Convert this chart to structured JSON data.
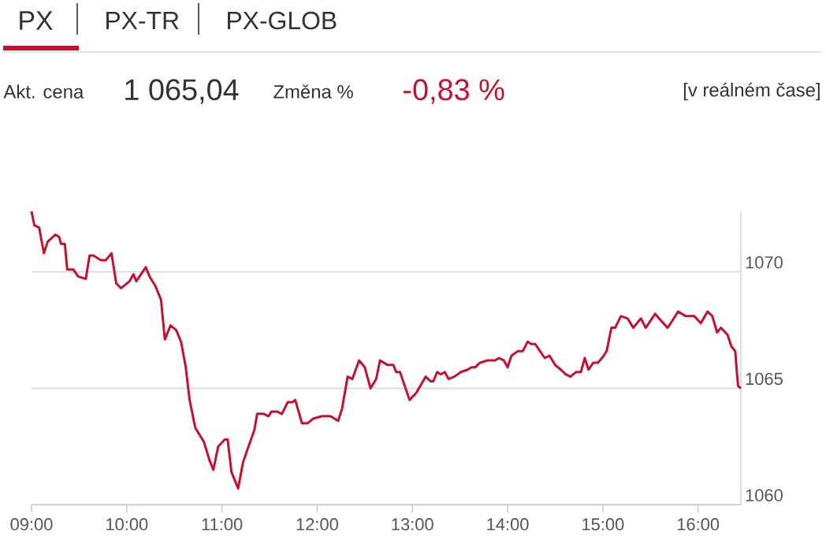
{
  "chart_data": {
    "type": "line",
    "title": "PX",
    "annotations": [
      "PX-TR",
      "PX-GLOB",
      "Akt. cena",
      "1 065,04",
      "Změna %",
      "-0,83 %",
      "[v reálném čase]"
    ],
    "x": [
      9.0,
      9.03,
      9.08,
      9.13,
      9.17,
      9.25,
      9.29,
      9.31,
      9.35,
      9.375,
      9.44,
      9.49,
      9.57,
      9.61,
      9.65,
      9.73,
      9.78,
      9.84,
      9.89,
      9.94,
      10.03,
      10.07,
      10.1,
      10.15,
      10.2,
      10.24,
      10.3,
      10.36,
      10.4,
      10.46,
      10.52,
      10.57,
      10.62,
      10.66,
      10.72,
      10.81,
      10.87,
      10.91,
      10.96,
      11.03,
      11.06,
      11.1,
      11.17,
      11.22,
      11.27,
      11.34,
      11.37,
      11.44,
      11.49,
      11.52,
      11.58,
      11.63,
      11.69,
      11.74,
      11.77,
      11.84,
      11.9,
      11.96,
      12.05,
      12.14,
      12.22,
      12.26,
      12.32,
      12.37,
      12.44,
      12.5,
      12.56,
      12.62,
      12.66,
      12.74,
      12.8,
      12.83,
      12.87,
      12.92,
      12.97,
      13.04,
      13.14,
      13.19,
      13.22,
      13.26,
      13.3,
      13.34,
      13.38,
      13.44,
      13.51,
      13.58,
      13.62,
      13.66,
      13.71,
      13.79,
      13.83,
      13.87,
      13.91,
      13.96,
      14.0,
      14.04,
      14.11,
      14.16,
      14.21,
      14.25,
      14.29,
      14.34,
      14.39,
      14.44,
      14.5,
      14.56,
      14.61,
      14.66,
      14.72,
      14.77,
      14.81,
      14.85,
      14.9,
      14.95,
      15.01,
      15.04,
      15.09,
      15.13,
      15.19,
      15.26,
      15.32,
      15.4,
      15.45,
      15.55,
      15.59,
      15.68,
      15.73,
      15.79,
      15.87,
      15.96,
      16.03,
      16.1,
      16.15,
      16.2,
      16.24,
      16.31,
      16.35,
      16.39,
      16.42,
      16.45
    ],
    "series": [
      {
        "color": "#c8102e",
        "values": [
          1072.6,
          1072.0,
          1071.9,
          1070.8,
          1071.3,
          1071.6,
          1071.5,
          1071.2,
          1071.2,
          1070.1,
          1070.1,
          1069.8,
          1069.7,
          1070.7,
          1070.7,
          1070.5,
          1070.5,
          1070.8,
          1069.5,
          1069.3,
          1069.6,
          1069.9,
          1069.6,
          1069.9,
          1070.2,
          1069.8,
          1069.4,
          1068.8,
          1067.1,
          1067.7,
          1067.5,
          1067.0,
          1065.9,
          1064.5,
          1063.3,
          1062.7,
          1061.9,
          1061.5,
          1062.5,
          1062.8,
          1062.8,
          1061.4,
          1060.7,
          1061.8,
          1062.4,
          1063.2,
          1063.9,
          1063.9,
          1063.8,
          1064.0,
          1064.0,
          1063.9,
          1064.4,
          1064.4,
          1064.5,
          1063.5,
          1063.5,
          1063.7,
          1063.8,
          1063.8,
          1063.6,
          1064.1,
          1065.5,
          1065.4,
          1066.2,
          1065.9,
          1065.0,
          1065.4,
          1066.2,
          1066.0,
          1066.0,
          1065.7,
          1065.7,
          1065.1,
          1064.5,
          1064.8,
          1065.5,
          1065.3,
          1065.3,
          1065.7,
          1065.6,
          1065.7,
          1065.4,
          1065.5,
          1065.7,
          1065.8,
          1065.9,
          1065.9,
          1066.1,
          1066.2,
          1066.2,
          1066.2,
          1066.3,
          1066.2,
          1065.9,
          1066.4,
          1066.6,
          1066.6,
          1067.0,
          1066.9,
          1066.9,
          1066.6,
          1066.3,
          1066.4,
          1066.0,
          1065.8,
          1065.6,
          1065.5,
          1065.7,
          1065.7,
          1066.3,
          1065.8,
          1066.1,
          1066.1,
          1066.4,
          1066.6,
          1067.6,
          1067.6,
          1068.1,
          1068.0,
          1067.6,
          1068.0,
          1067.6,
          1068.2,
          1068.0,
          1067.6,
          1067.9,
          1068.3,
          1068.1,
          1068.1,
          1067.8,
          1068.3,
          1068.1,
          1067.4,
          1067.6,
          1067.3,
          1066.8,
          1066.6,
          1065.1,
          1065.0
        ]
      }
    ],
    "xlim": [
      9,
      16.45
    ],
    "xticks": [
      {
        "value": 9,
        "label": "09:00"
      },
      {
        "value": 10,
        "label": "10:00"
      },
      {
        "value": 11,
        "label": "11:00"
      },
      {
        "value": 12,
        "label": "12:00"
      },
      {
        "value": 13,
        "label": "13:00"
      },
      {
        "value": 14,
        "label": "14:00"
      },
      {
        "value": 15,
        "label": "15:00"
      },
      {
        "value": 16,
        "label": "16:00"
      }
    ],
    "ylim": [
      1060,
      1072.6
    ],
    "yticks": [
      1060,
      1065,
      1070
    ],
    "grid": "y",
    "line_style": "solid",
    "marker": "none"
  }
}
